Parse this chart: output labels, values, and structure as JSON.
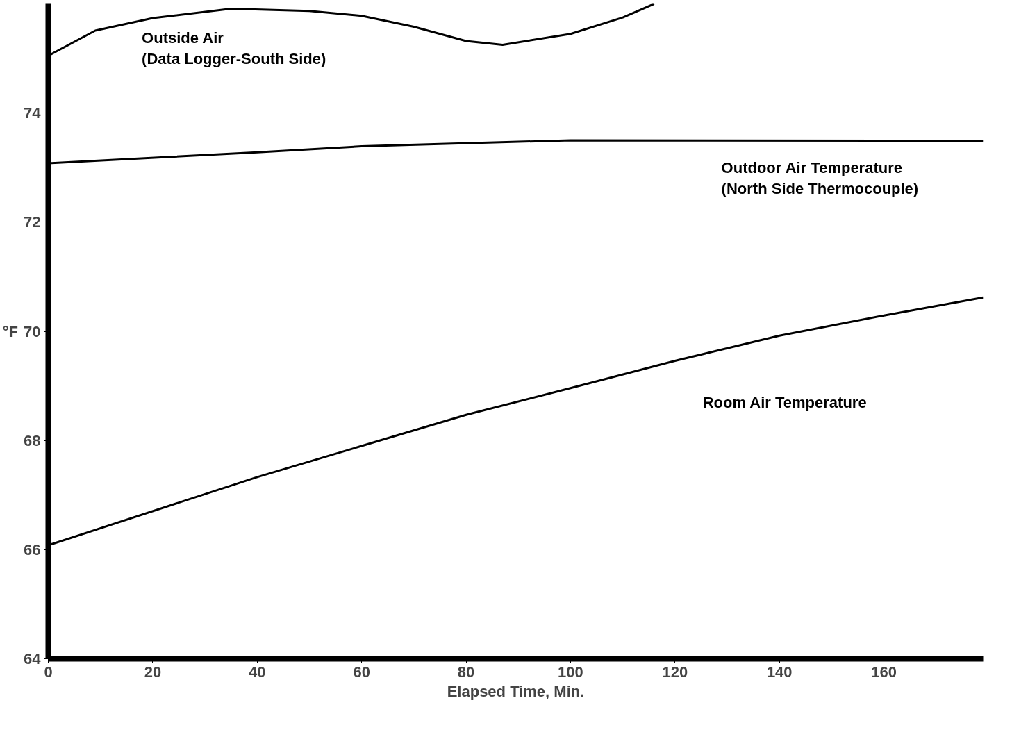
{
  "chart_data": {
    "type": "line",
    "xlabel": "Elapsed Time, Min.",
    "ylabel": "°F",
    "xlim": [
      0,
      179
    ],
    "ylim": [
      64,
      76
    ],
    "xticks": [
      0,
      20,
      40,
      60,
      80,
      100,
      120,
      140,
      160
    ],
    "yticks": [
      64,
      66,
      68,
      70,
      72,
      74
    ],
    "grid": false,
    "legend": false,
    "marker": "none",
    "line_style": "solid",
    "series": [
      {
        "name": "Outside Air\n(Data Logger-South Side)",
        "color": "#000000",
        "x": [
          0,
          9,
          20,
          35,
          50,
          60,
          70,
          80,
          87,
          100,
          110,
          116
        ],
        "values": [
          75.05,
          75.51,
          75.74,
          75.91,
          75.87,
          75.78,
          75.58,
          75.32,
          75.25,
          75.45,
          75.75,
          76.0
        ]
      },
      {
        "name": "Outdoor Air Temperature\n(North Side Thermocouple)",
        "color": "#000000",
        "x": [
          0,
          40,
          60,
          100,
          179
        ],
        "values": [
          73.08,
          73.28,
          73.39,
          73.5,
          73.49
        ]
      },
      {
        "name": "Room Air Temperature",
        "color": "#000000",
        "x": [
          0,
          40,
          60,
          80,
          100,
          120,
          140,
          160,
          179
        ],
        "values": [
          66.08,
          67.33,
          67.9,
          68.47,
          68.96,
          69.46,
          69.92,
          70.29,
          70.62
        ]
      }
    ]
  }
}
